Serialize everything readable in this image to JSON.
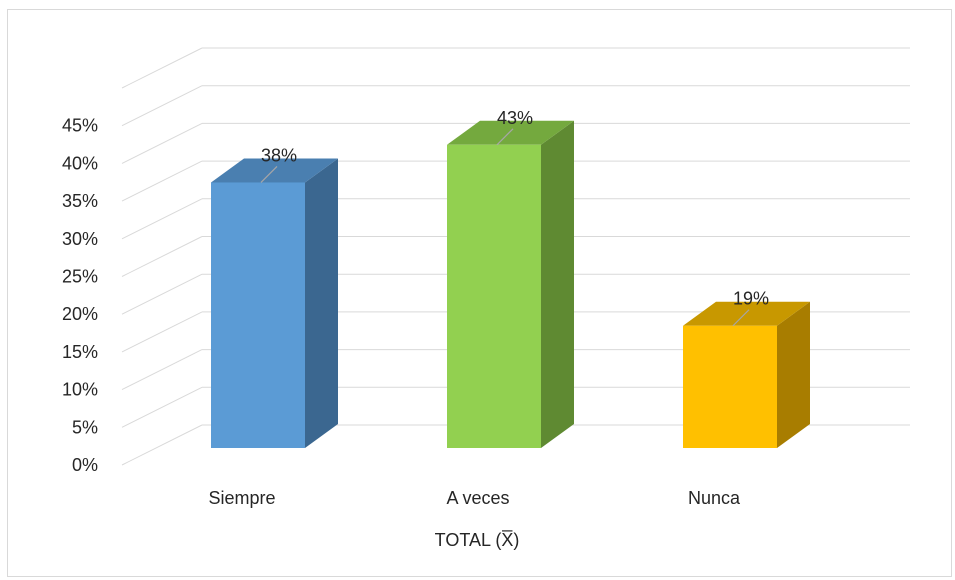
{
  "chart_data": {
    "type": "bar",
    "style": "3d-column",
    "categories": [
      "Siempre",
      "A veces",
      "Nunca"
    ],
    "values": [
      38,
      43,
      19
    ],
    "data_labels": [
      "38%",
      "43%",
      "19%"
    ],
    "colors": [
      {
        "front": "#5b9bd5",
        "side": "#3b6790",
        "top": "#4a7fb0"
      },
      {
        "front": "#92d050",
        "side": "#5f8a32",
        "top": "#74a93e"
      },
      {
        "front": "#ffc000",
        "side": "#a87d00",
        "top": "#c89800"
      }
    ],
    "y_ticks": [
      "0%",
      "5%",
      "10%",
      "15%",
      "20%",
      "25%",
      "30%",
      "35%",
      "40%",
      "45%"
    ],
    "ylim": [
      0,
      50
    ],
    "xlabel": "TOTAL (X̅)",
    "ylabel": "",
    "title": "",
    "grid": true,
    "gridline_color": "#d9d9d9"
  }
}
